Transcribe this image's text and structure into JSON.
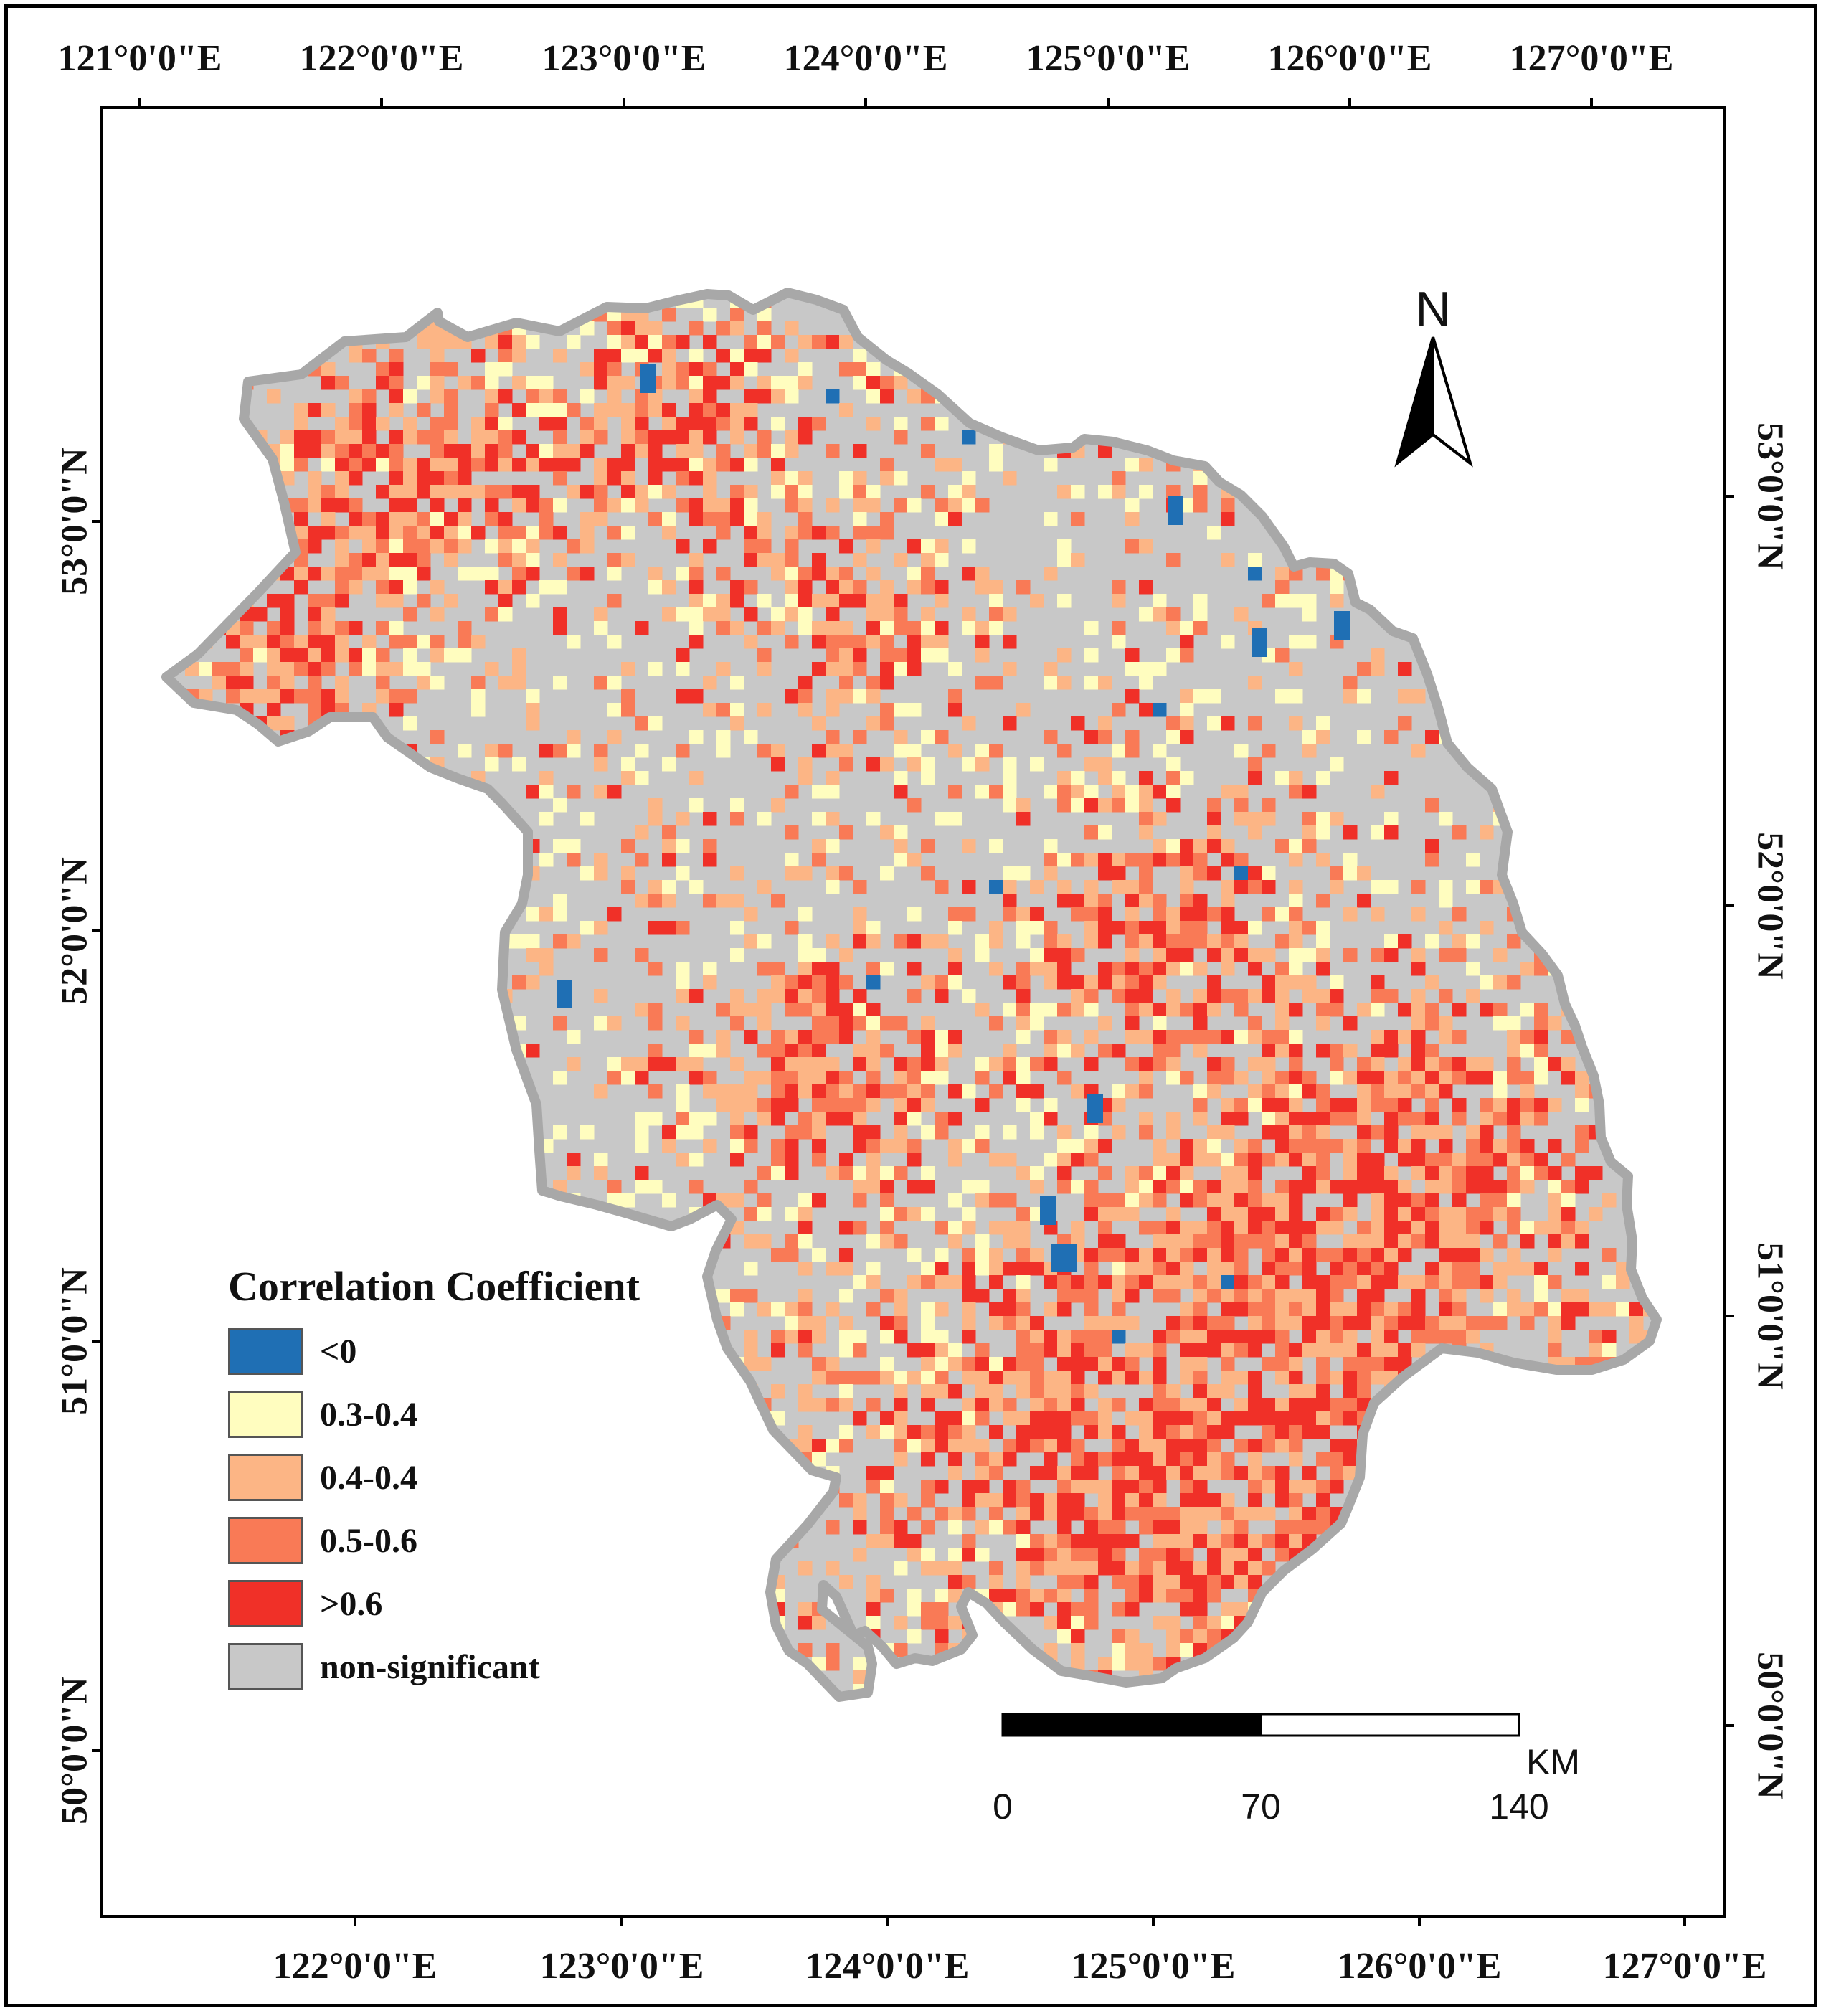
{
  "map": {
    "top_longitude_labels": [
      "121°0'0\"E",
      "122°0'0\"E",
      "123°0'0\"E",
      "124°0'0\"E",
      "125°0'0\"E",
      "126°0'0\"E",
      "127°0'0\"E"
    ],
    "bottom_longitude_labels": [
      "122°0'0\"E",
      "123°0'0\"E",
      "124°0'0\"E",
      "125°0'0\"E",
      "126°0'0\"E",
      "127°0'0\"E"
    ],
    "left_latitude_labels": [
      "53°0'0\"N",
      "52°0'0\"N",
      "51°0'0\"N",
      "50°0'0\"N"
    ],
    "right_latitude_labels": [
      "53°0'0\"N",
      "52°0'0\"N",
      "51°0'0\"N",
      "50°0'0\"N"
    ],
    "north_arrow_label": "N",
    "scale_bar": {
      "unit": "KM",
      "labels": [
        "0",
        "70",
        "140"
      ]
    }
  },
  "legend": {
    "title": "Correlation Coefficient",
    "items": [
      {
        "label": "<0",
        "color": "#1f6fb4"
      },
      {
        "label": "0.3-0.4",
        "color": "#fffdbf"
      },
      {
        "label": "0.4-0.4",
        "color": "#fcb585"
      },
      {
        "label": "0.5-0.6",
        "color": "#f97a56"
      },
      {
        "label": ">0.6",
        "color": "#f03028"
      },
      {
        "label": "non-significant",
        "color": "#c8c8c8"
      }
    ]
  },
  "colors": {
    "boundary": "#a8a8a8",
    "background": "#ffffff",
    "frame": "#000000"
  }
}
